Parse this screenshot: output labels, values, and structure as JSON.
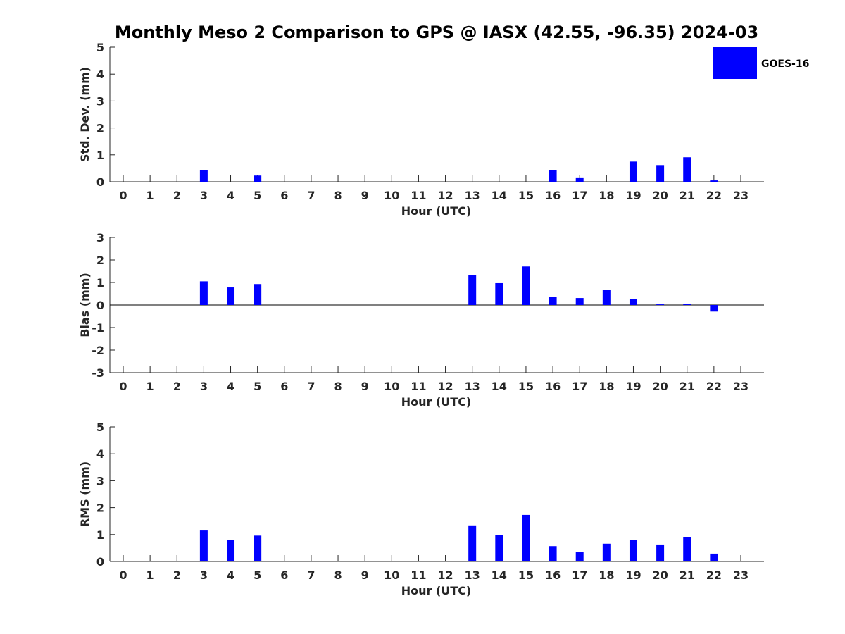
{
  "title": "Monthly Meso 2 Comparison to GPS @ IASX (42.55, -96.35) 2024-03",
  "legend": {
    "label": "GOES-16",
    "color": "#0000ff"
  },
  "chart_data": [
    {
      "type": "bar",
      "id": "stddev",
      "xlabel": "Hour (UTC)",
      "ylabel": "Std. Dev. (mm)",
      "ylim": [
        0,
        5
      ],
      "yticks": [
        0,
        1,
        2,
        3,
        4,
        5
      ],
      "categories": [
        "0",
        "1",
        "2",
        "3",
        "4",
        "5",
        "6",
        "7",
        "8",
        "9",
        "10",
        "11",
        "12",
        "13",
        "14",
        "15",
        "16",
        "17",
        "18",
        "19",
        "20",
        "21",
        "22",
        "23"
      ],
      "series": [
        {
          "name": "GOES-16",
          "color": "#0000ff",
          "values": [
            null,
            null,
            null,
            0.44,
            null,
            0.23,
            null,
            null,
            null,
            null,
            null,
            null,
            null,
            null,
            null,
            null,
            0.44,
            0.16,
            null,
            0.75,
            0.62,
            0.91,
            0.05,
            null
          ]
        }
      ]
    },
    {
      "type": "bar",
      "id": "bias",
      "xlabel": "Hour (UTC)",
      "ylabel": "Bias (mm)",
      "ylim": [
        -3,
        3
      ],
      "yticks": [
        -3,
        -2,
        -1,
        0,
        1,
        2,
        3
      ],
      "zero_line": true,
      "categories": [
        "0",
        "1",
        "2",
        "3",
        "4",
        "5",
        "6",
        "7",
        "8",
        "9",
        "10",
        "11",
        "12",
        "13",
        "14",
        "15",
        "16",
        "17",
        "18",
        "19",
        "20",
        "21",
        "22",
        "23"
      ],
      "series": [
        {
          "name": "GOES-16",
          "color": "#0000ff",
          "values": [
            null,
            null,
            null,
            1.05,
            0.78,
            0.93,
            null,
            null,
            null,
            null,
            null,
            null,
            null,
            1.34,
            0.97,
            1.71,
            0.37,
            0.31,
            0.68,
            0.27,
            0.03,
            0.06,
            -0.29,
            null
          ]
        }
      ]
    },
    {
      "type": "bar",
      "id": "rms",
      "xlabel": "Hour (UTC)",
      "ylabel": "RMS (mm)",
      "ylim": [
        0,
        5
      ],
      "yticks": [
        0,
        1,
        2,
        3,
        4,
        5
      ],
      "categories": [
        "0",
        "1",
        "2",
        "3",
        "4",
        "5",
        "6",
        "7",
        "8",
        "9",
        "10",
        "11",
        "12",
        "13",
        "14",
        "15",
        "16",
        "17",
        "18",
        "19",
        "20",
        "21",
        "22",
        "23"
      ],
      "series": [
        {
          "name": "GOES-16",
          "color": "#0000ff",
          "values": [
            null,
            null,
            null,
            1.15,
            0.79,
            0.96,
            null,
            null,
            null,
            null,
            null,
            null,
            null,
            1.34,
            0.97,
            1.73,
            0.57,
            0.34,
            0.66,
            0.79,
            0.63,
            0.89,
            0.29,
            null
          ]
        }
      ]
    }
  ]
}
